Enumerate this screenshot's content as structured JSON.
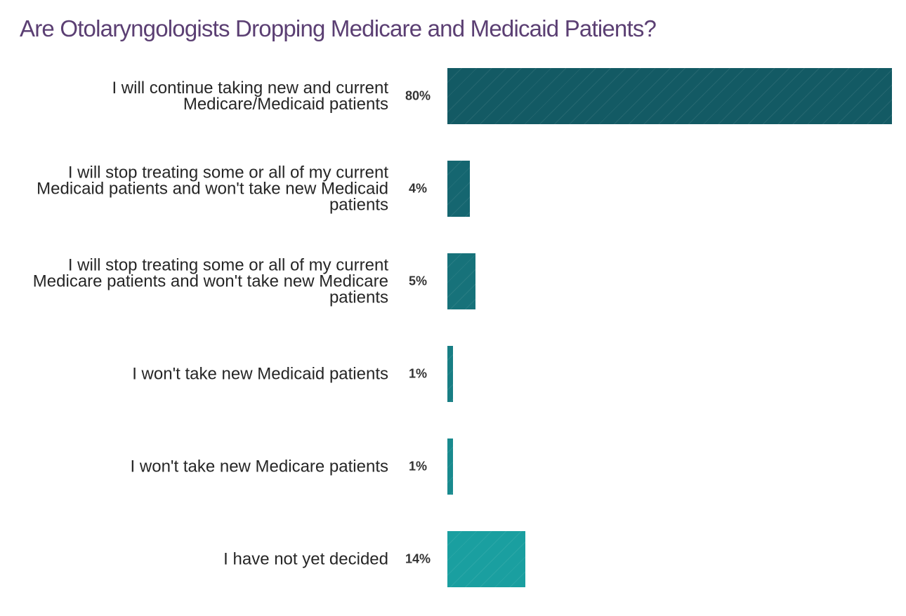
{
  "chart_data": {
    "type": "bar",
    "orientation": "horizontal",
    "title": "Are Otolaryngologists Dropping Medicare and Medicaid Patients?",
    "categories": [
      "I will continue taking new and current Medicare/Medicaid patients",
      "I will stop treating some or all of my current Medicaid patients and won't take new Medicaid patients",
      "I will stop treating some or all of my current Medicare patients and won't take new Medicare patients",
      "I won't take new Medicaid patients",
      "I won't take new Medicare patients",
      "I have not yet decided"
    ],
    "values": [
      80,
      4,
      5,
      1,
      1,
      14
    ],
    "value_labels": [
      "80%",
      "4%",
      "5%",
      "1%",
      "1%",
      "14%"
    ],
    "colors": [
      "#135a64",
      "#156670",
      "#17727a",
      "#187e84",
      "#198a8e",
      "#1a9fa0"
    ]
  }
}
